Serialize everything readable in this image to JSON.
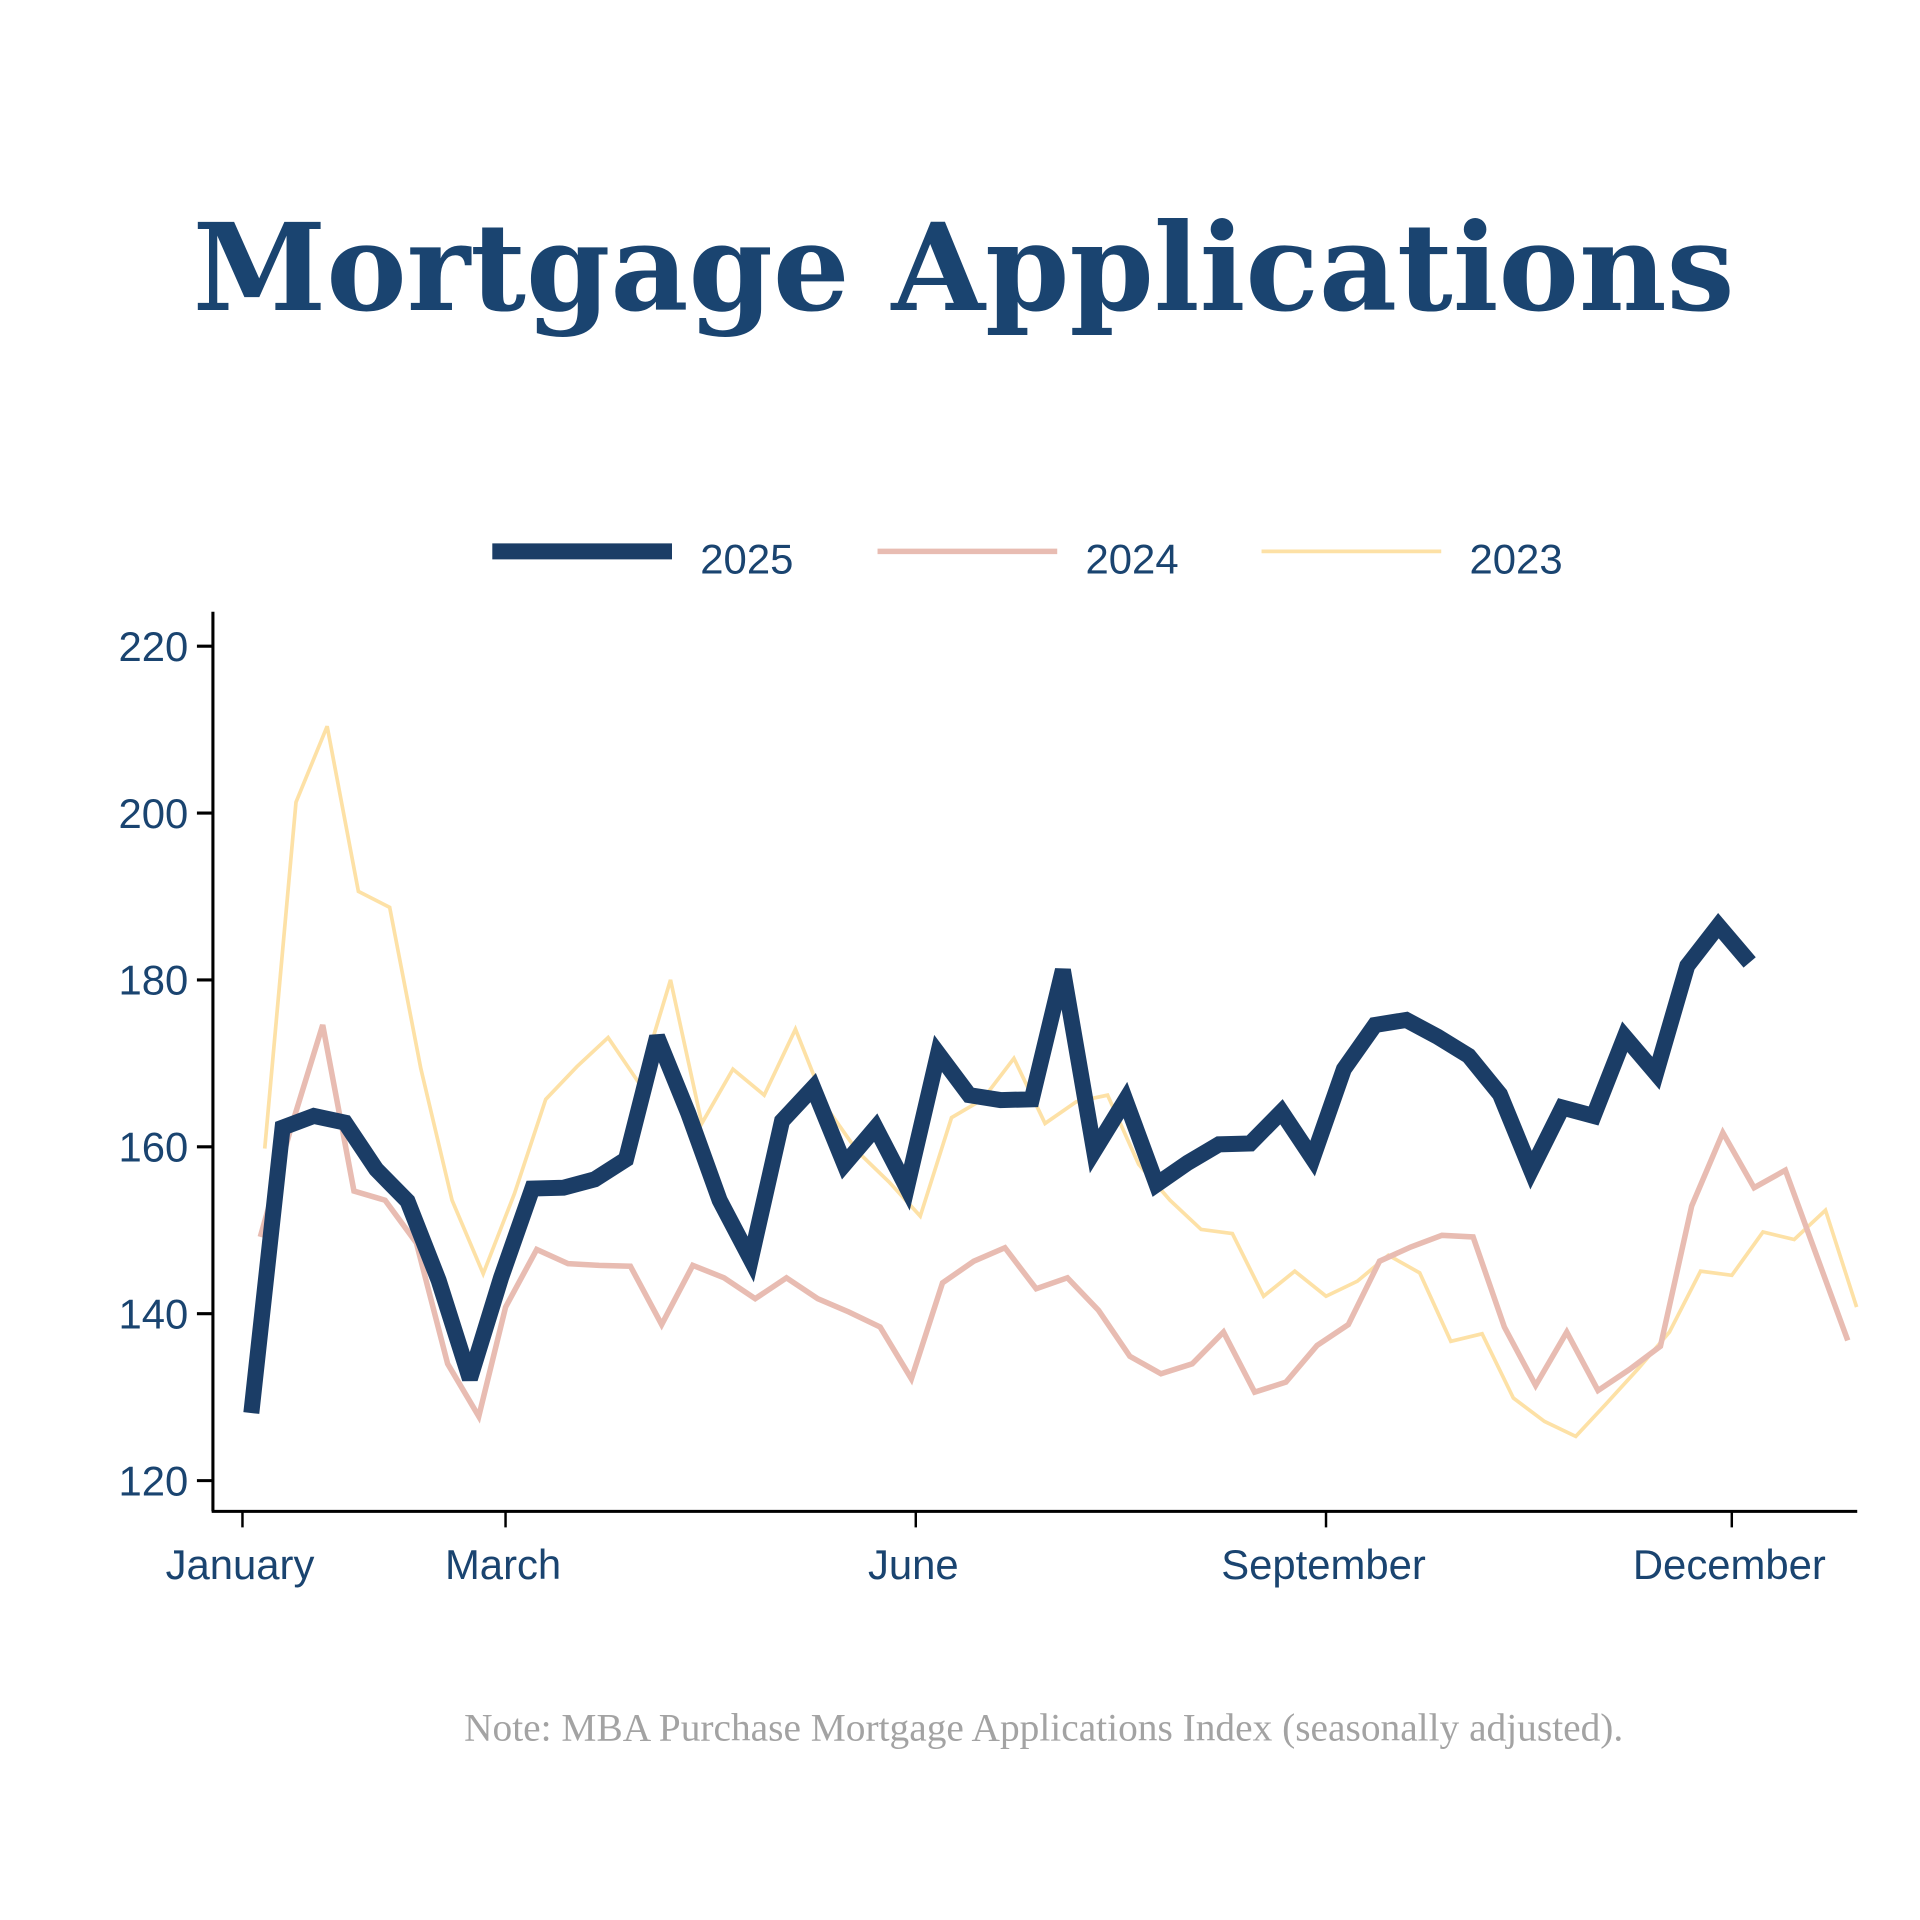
{
  "chart_data": {
    "type": "line",
    "title": "Mortgage Applications",
    "note": "Note: MBA Purchase Mortgage Applications Index (seasonally adjusted).",
    "xlabel": "",
    "ylabel": "",
    "ylim": [
      117,
      224
    ],
    "yticks": [
      120,
      140,
      160,
      180,
      200,
      220
    ],
    "xticks": [
      {
        "label": "January",
        "date": "01-01"
      },
      {
        "label": "March",
        "date": "03-01"
      },
      {
        "label": "June",
        "date": "06-01"
      },
      {
        "label": "September",
        "date": "09-01"
      },
      {
        "label": "December",
        "date": "12-01"
      }
    ],
    "grid": false,
    "legend": "top-center",
    "series": [
      {
        "name": "2025",
        "color": "#1b3d66",
        "emphasis": "thick",
        "x": [
          "01-03",
          "01-10",
          "01-17",
          "01-24",
          "01-31",
          "02-07",
          "02-14",
          "02-21",
          "02-28",
          "03-07",
          "03-14",
          "03-21",
          "03-28",
          "04-04",
          "04-11",
          "04-18",
          "04-25",
          "05-02",
          "05-09",
          "05-16",
          "05-23",
          "05-30",
          "06-06",
          "06-13",
          "06-20",
          "06-27",
          "07-04",
          "07-11",
          "07-18",
          "07-25",
          "08-01",
          "08-08",
          "08-15",
          "08-22",
          "08-29",
          "09-05",
          "09-12",
          "09-19",
          "09-26",
          "10-03",
          "10-10",
          "10-17",
          "10-24",
          "10-31",
          "11-07",
          "11-14",
          "11-21",
          "11-28",
          "12-05"
        ],
        "values": [
          128.1,
          162.3,
          163.7,
          162.9,
          157.3,
          153.5,
          144.0,
          132.2,
          144.3,
          155.0,
          155.1,
          156.1,
          158.5,
          173.2,
          164.0,
          153.6,
          146.5,
          163.1,
          167.1,
          157.9,
          162.3,
          155.1,
          171.2,
          166.2,
          165.6,
          165.7,
          181.2,
          159.5,
          165.6,
          155.5,
          158.1,
          160.3,
          160.4,
          164.2,
          158.6,
          169.3,
          174.6,
          175.2,
          173.2,
          170.9,
          166.3,
          157.2,
          164.7,
          163.7,
          173.2,
          168.8,
          181.7,
          186.5,
          182.1
        ]
      },
      {
        "name": "2024",
        "color": "#e8bcb2",
        "emphasis": "medium",
        "x": [
          "01-05",
          "01-12",
          "01-19",
          "01-26",
          "02-02",
          "02-09",
          "02-16",
          "02-23",
          "03-01",
          "03-08",
          "03-15",
          "03-22",
          "03-29",
          "04-05",
          "04-12",
          "04-19",
          "04-26",
          "05-03",
          "05-10",
          "05-17",
          "05-24",
          "05-31",
          "06-07",
          "06-14",
          "06-21",
          "06-28",
          "07-05",
          "07-12",
          "07-19",
          "07-26",
          "08-02",
          "08-09",
          "08-16",
          "08-23",
          "08-30",
          "09-06",
          "09-13",
          "09-20",
          "09-27",
          "10-04",
          "10-11",
          "10-18",
          "10-25",
          "11-01",
          "11-08",
          "11-15",
          "11-22",
          "11-29",
          "12-06",
          "12-13",
          "12-20",
          "12-27"
        ],
        "values": [
          149.2,
          162.5,
          174.6,
          154.7,
          153.6,
          148.5,
          134.0,
          127.7,
          140.8,
          147.7,
          146.0,
          145.8,
          145.7,
          138.7,
          145.8,
          144.3,
          141.8,
          144.3,
          141.8,
          140.2,
          138.4,
          132.2,
          143.7,
          146.3,
          147.9,
          143.0,
          144.3,
          140.4,
          134.9,
          132.8,
          134.0,
          137.8,
          130.6,
          131.8,
          136.2,
          138.7,
          146.3,
          148.0,
          149.4,
          149.2,
          138.4,
          131.4,
          137.8,
          130.8,
          133.3,
          136.1,
          152.9,
          161.7,
          155.1,
          157.2,
          147.0,
          136.8
        ]
      },
      {
        "name": "2023",
        "color": "#fde1a6",
        "emphasis": "thin",
        "x": [
          "01-06",
          "01-13",
          "01-20",
          "01-27",
          "02-03",
          "02-10",
          "02-17",
          "02-24",
          "03-03",
          "03-10",
          "03-17",
          "03-24",
          "03-31",
          "04-07",
          "04-14",
          "04-21",
          "04-28",
          "05-05",
          "05-12",
          "05-19",
          "05-26",
          "06-02",
          "06-09",
          "06-16",
          "06-23",
          "06-30",
          "07-07",
          "07-14",
          "07-21",
          "07-28",
          "08-04",
          "08-11",
          "08-18",
          "08-25",
          "09-01",
          "09-08",
          "09-15",
          "09-22",
          "09-29",
          "10-06",
          "10-13",
          "10-20",
          "10-27",
          "11-03",
          "11-10",
          "11-17",
          "11-24",
          "12-01",
          "12-08",
          "12-15",
          "12-22",
          "12-29"
        ],
        "values": [
          159.8,
          201.3,
          210.4,
          190.6,
          188.7,
          169.4,
          153.6,
          144.8,
          154.4,
          165.7,
          169.6,
          173.1,
          167.6,
          180.0,
          162.8,
          169.3,
          166.2,
          174.1,
          164.7,
          159.4,
          155.8,
          151.7,
          163.5,
          165.7,
          170.6,
          162.8,
          165.4,
          166.2,
          157.9,
          153.6,
          150.1,
          149.6,
          142.1,
          145.1,
          142.1,
          143.9,
          147.0,
          144.9,
          136.7,
          137.6,
          129.9,
          127.1,
          125.3,
          129.3,
          133.4,
          137.8,
          145.1,
          144.6,
          149.8,
          148.9,
          152.4,
          140.8
        ]
      }
    ],
    "colors": {
      "title": "#1a4470",
      "axis_text": "#1a4470",
      "note": "#a3a3a3",
      "axis": "#000000"
    }
  }
}
